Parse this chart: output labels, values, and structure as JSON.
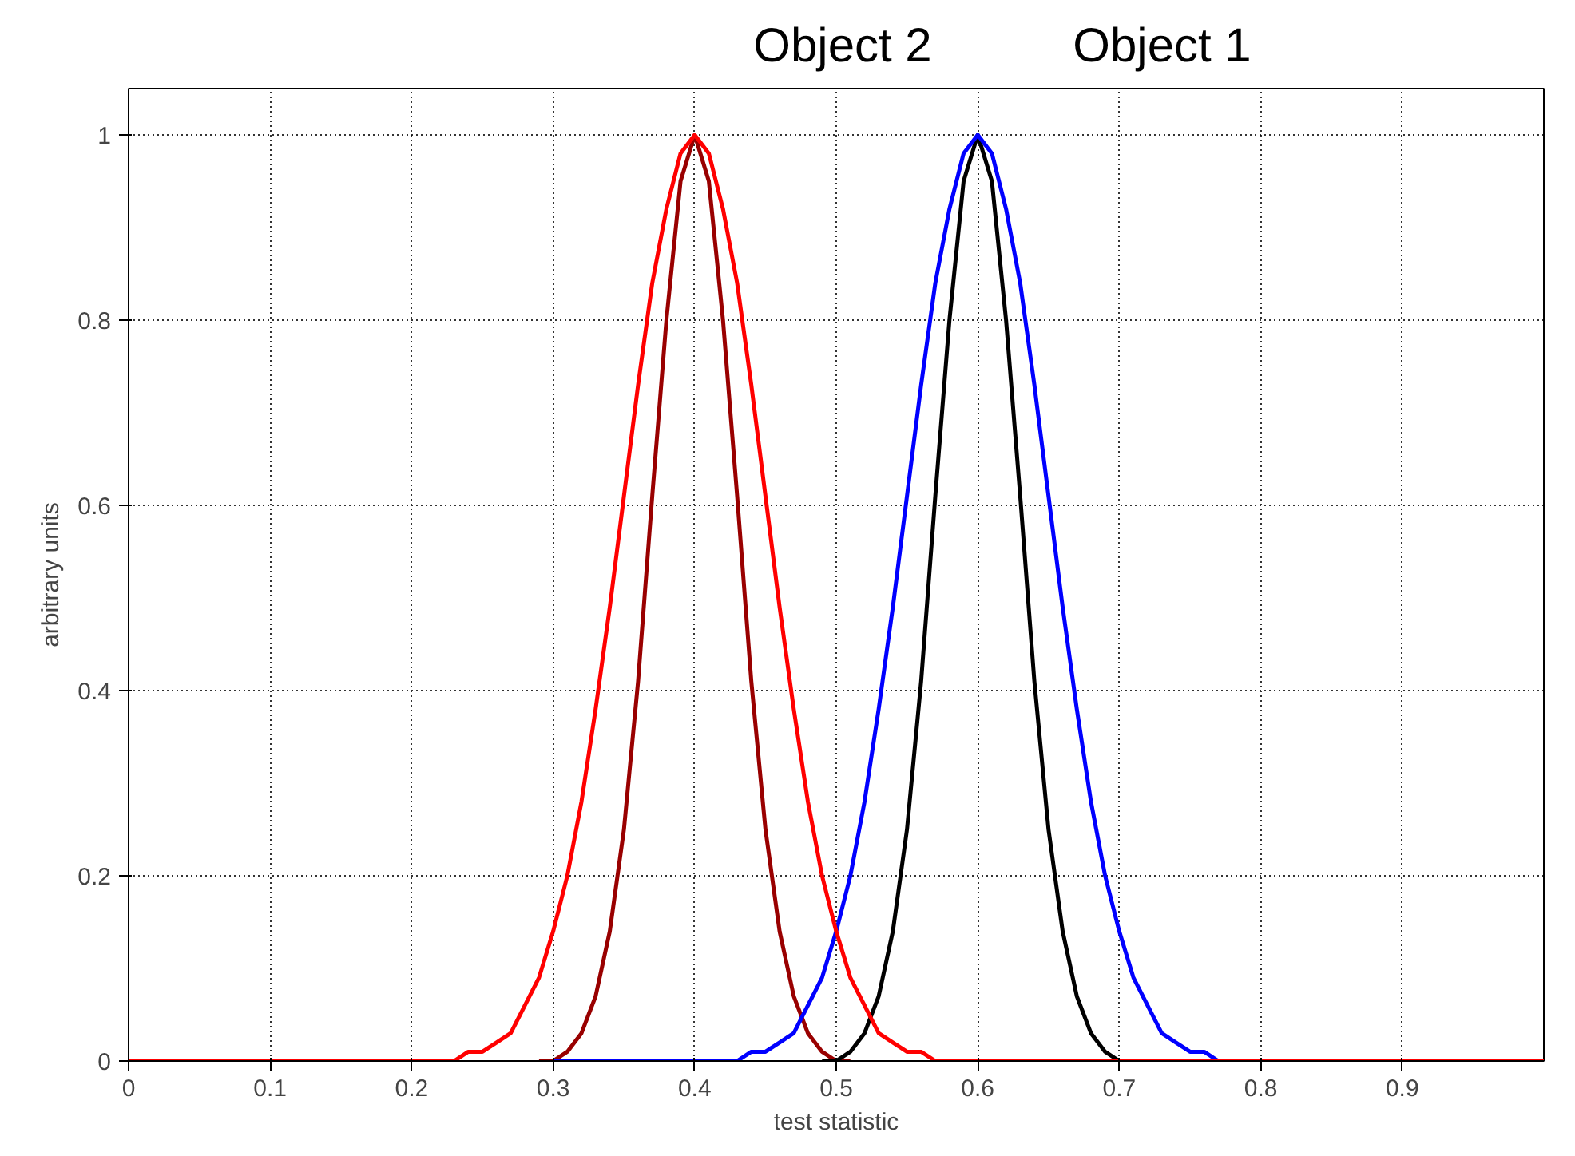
{
  "chart_data": {
    "type": "line",
    "xlabel": "test statistic",
    "ylabel": "arbitrary units",
    "annotations": [
      "Object 2",
      "Object 1"
    ],
    "xlim": [
      0,
      1
    ],
    "ylim": [
      0,
      1.05
    ],
    "xticks": [
      0,
      0.1,
      0.2,
      0.3,
      0.4,
      0.5,
      0.6,
      0.7,
      0.8,
      0.9
    ],
    "yticks": [
      0,
      0.2,
      0.4,
      0.6,
      0.8,
      1
    ],
    "grid": true,
    "line_style": "solid",
    "series": [
      {
        "color": "#990000",
        "x": [
          0.29,
          0.3,
          0.31,
          0.32,
          0.33,
          0.34,
          0.35,
          0.36,
          0.37,
          0.38,
          0.39,
          0.4,
          0.41,
          0.42,
          0.43,
          0.44,
          0.45,
          0.46,
          0.47,
          0.48,
          0.49,
          0.5,
          0.51
        ],
        "values": [
          0,
          0,
          0.01,
          0.03,
          0.07,
          0.14,
          0.25,
          0.41,
          0.61,
          0.8,
          0.95,
          1,
          0.95,
          0.8,
          0.61,
          0.41,
          0.25,
          0.14,
          0.07,
          0.03,
          0.01,
          0,
          0
        ]
      },
      {
        "color": "#000000",
        "x": [
          0.49,
          0.5,
          0.51,
          0.52,
          0.53,
          0.54,
          0.55,
          0.56,
          0.57,
          0.58,
          0.59,
          0.6,
          0.61,
          0.62,
          0.63,
          0.64,
          0.65,
          0.66,
          0.67,
          0.68,
          0.69,
          0.7,
          0.71
        ],
        "values": [
          0,
          0,
          0.01,
          0.03,
          0.07,
          0.14,
          0.25,
          0.41,
          0.61,
          0.8,
          0.95,
          1,
          0.95,
          0.8,
          0.61,
          0.41,
          0.25,
          0.14,
          0.07,
          0.03,
          0.01,
          0,
          0
        ]
      },
      {
        "color": "#0000ff",
        "x": [
          0.3,
          0.43,
          0.44,
          0.45,
          0.46,
          0.47,
          0.48,
          0.49,
          0.5,
          0.51,
          0.52,
          0.53,
          0.54,
          0.55,
          0.56,
          0.57,
          0.58,
          0.59,
          0.6,
          0.61,
          0.62,
          0.63,
          0.64,
          0.65,
          0.66,
          0.67,
          0.68,
          0.69,
          0.7,
          0.71,
          0.72,
          0.73,
          0.74,
          0.75,
          0.76,
          0.77
        ],
        "values": [
          0,
          0,
          0.01,
          0.01,
          0.02,
          0.03,
          0.06,
          0.09,
          0.14,
          0.2,
          0.28,
          0.38,
          0.49,
          0.61,
          0.73,
          0.84,
          0.92,
          0.98,
          1,
          0.98,
          0.92,
          0.84,
          0.73,
          0.61,
          0.49,
          0.38,
          0.28,
          0.2,
          0.14,
          0.09,
          0.06,
          0.03,
          0.02,
          0.01,
          0.01,
          0
        ]
      },
      {
        "color": "#ff0000",
        "x": [
          0,
          0.23,
          0.24,
          0.25,
          0.26,
          0.27,
          0.28,
          0.29,
          0.3,
          0.31,
          0.32,
          0.33,
          0.34,
          0.35,
          0.36,
          0.37,
          0.38,
          0.39,
          0.4,
          0.41,
          0.42,
          0.43,
          0.44,
          0.45,
          0.46,
          0.47,
          0.48,
          0.49,
          0.5,
          0.51,
          0.52,
          0.53,
          0.54,
          0.55,
          0.56,
          0.57,
          1
        ],
        "values": [
          0,
          0,
          0.01,
          0.01,
          0.02,
          0.03,
          0.06,
          0.09,
          0.14,
          0.2,
          0.28,
          0.38,
          0.49,
          0.61,
          0.73,
          0.84,
          0.92,
          0.98,
          1,
          0.98,
          0.92,
          0.84,
          0.73,
          0.61,
          0.49,
          0.38,
          0.28,
          0.2,
          0.14,
          0.09,
          0.06,
          0.03,
          0.02,
          0.01,
          0.01,
          0,
          0
        ]
      }
    ]
  }
}
